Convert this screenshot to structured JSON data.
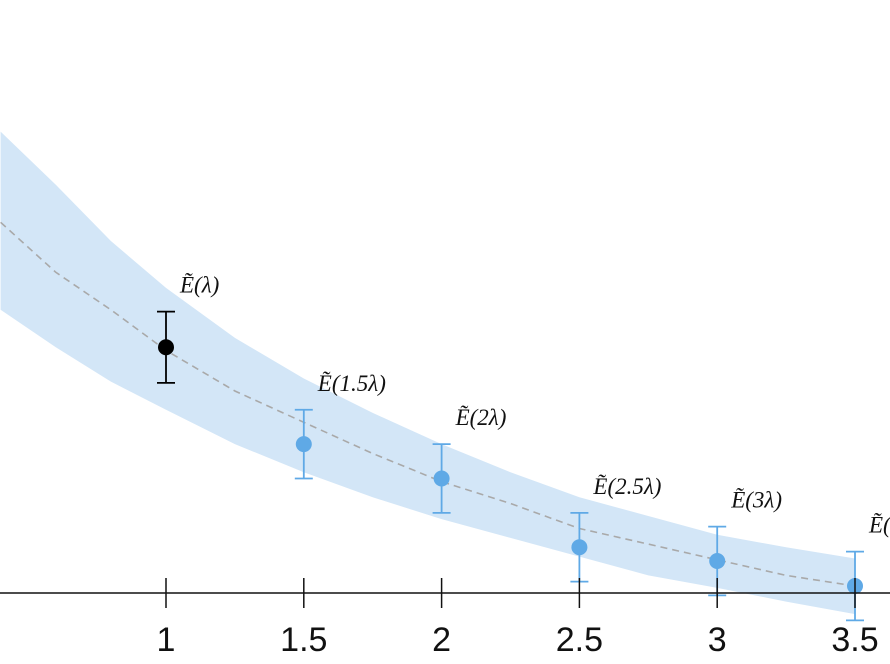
{
  "chart_data": {
    "type": "scatter",
    "title": "",
    "xlabel": "",
    "ylabel": "",
    "xlim": [
      0.4,
      3.62
    ],
    "ylim": [
      0,
      1
    ],
    "ticks": [
      {
        "value": 1,
        "label": "1"
      },
      {
        "value": 1.5,
        "label": "1.5"
      },
      {
        "value": 2,
        "label": "2"
      },
      {
        "value": 2.5,
        "label": "2.5"
      },
      {
        "value": 3,
        "label": "3"
      },
      {
        "value": 3.5,
        "label": "3.5"
      }
    ],
    "points": [
      {
        "x": 1.0,
        "y": 0.47,
        "err": 0.057,
        "label": "Ẽ(λ)",
        "group": "measured"
      },
      {
        "x": 1.5,
        "y": 0.315,
        "err": 0.055,
        "label": "Ẽ(1.5λ)",
        "group": "extrapolated"
      },
      {
        "x": 2.0,
        "y": 0.26,
        "err": 0.055,
        "label": "Ẽ(2λ)",
        "group": "extrapolated"
      },
      {
        "x": 2.5,
        "y": 0.15,
        "err": 0.055,
        "label": "Ẽ(2.5λ)",
        "group": "extrapolated"
      },
      {
        "x": 3.0,
        "y": 0.128,
        "err": 0.055,
        "label": "Ẽ(3λ)",
        "group": "extrapolated"
      },
      {
        "x": 3.5,
        "y": 0.088,
        "err": 0.055,
        "label": "Ẽ(",
        "group": "extrapolated"
      }
    ],
    "fit_curve": {
      "x": [
        0.4,
        0.6,
        0.8,
        1.0,
        1.25,
        1.5,
        1.75,
        2.0,
        2.25,
        2.5,
        2.75,
        3.0,
        3.25,
        3.5
      ],
      "y": [
        0.67,
        0.59,
        0.53,
        0.465,
        0.4,
        0.35,
        0.3,
        0.255,
        0.22,
        0.18,
        0.155,
        0.13,
        0.105,
        0.088
      ]
    },
    "band_upper": [
      0.815,
      0.73,
      0.64,
      0.565,
      0.485,
      0.42,
      0.365,
      0.315,
      0.27,
      0.23,
      0.2,
      0.17,
      0.15,
      0.132
    ],
    "band_lower": [
      0.53,
      0.47,
      0.415,
      0.37,
      0.315,
      0.27,
      0.23,
      0.195,
      0.165,
      0.135,
      0.105,
      0.085,
      0.063,
      0.043
    ],
    "colors": {
      "band": "#d3e6f7",
      "curve": "#a9a9a9",
      "measured": "#000000",
      "extrapolated": "#5fa9e6",
      "axis": "#111111"
    }
  }
}
